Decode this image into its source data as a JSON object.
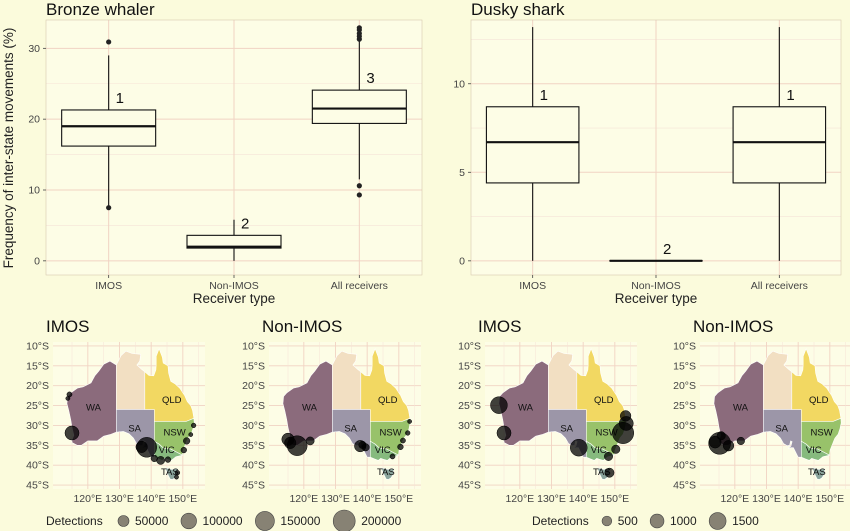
{
  "chart_data": [
    {
      "type": "box",
      "title": "Bronze whaler",
      "xlabel": "Receiver type",
      "ylabel": "Frequency of inter-state movements (%)",
      "ylim": [
        -2,
        34
      ],
      "yticks": [
        0,
        10,
        20,
        30
      ],
      "categories": [
        "IMOS",
        "Non-IMOS",
        "All receivers"
      ],
      "boxes": [
        {
          "category": "IMOS",
          "min": 7.5,
          "q1": 16.2,
          "median": 19.0,
          "q3": 21.3,
          "max": 29.0,
          "outliers": [
            7.5,
            30.9
          ],
          "label": "1"
        },
        {
          "category": "Non-IMOS",
          "min": 0,
          "q1": 1.8,
          "median": 2.0,
          "q3": 3.6,
          "max": 5.8,
          "outliers": [],
          "label": "2"
        },
        {
          "category": "All receivers",
          "min": 11.5,
          "q1": 19.4,
          "median": 21.5,
          "q3": 24.1,
          "max": 31.0,
          "outliers": [
            9.3,
            10.6,
            31.3,
            31.7,
            32.1,
            32.6,
            32.9
          ],
          "label": "3"
        }
      ]
    },
    {
      "type": "box",
      "title": "Dusky shark",
      "xlabel": "Receiver type",
      "ylabel": "",
      "ylim": [
        -0.8,
        13.6
      ],
      "yticks": [
        0,
        5,
        10
      ],
      "categories": [
        "IMOS",
        "Non-IMOS",
        "All receivers"
      ],
      "boxes": [
        {
          "category": "IMOS",
          "min": 0,
          "q1": 4.4,
          "median": 6.7,
          "q3": 8.7,
          "max": 13.2,
          "outliers": [],
          "label": "1"
        },
        {
          "category": "Non-IMOS",
          "min": 0,
          "q1": 0,
          "median": 0,
          "q3": 0,
          "max": 0,
          "outliers": [],
          "label": "2"
        },
        {
          "category": "All receivers",
          "min": 0,
          "q1": 4.4,
          "median": 6.7,
          "q3": 8.7,
          "max": 13.2,
          "outliers": [],
          "label": "1"
        }
      ]
    }
  ],
  "maps": {
    "lat_ticks": [
      "10°S",
      "15°S",
      "20°S",
      "25°S",
      "30°S",
      "35°S",
      "40°S",
      "45°S"
    ],
    "lon_ticks": [
      "120°E",
      "130°E",
      "140°E",
      "150°E"
    ],
    "states": [
      "WA",
      "SA",
      "QLD",
      "NSW",
      "VIC",
      "TAS"
    ],
    "state_colors": {
      "WA": "#8b6b7c",
      "SA": "#9c96a8",
      "NT": "#f2dfc2",
      "QLD": "#f2d862",
      "NSW": "#98c26a",
      "VIC": "#86ba7e",
      "TAS": "#8aa49c"
    },
    "panels": [
      {
        "title": "IMOS",
        "species": "Bronze whaler",
        "points": [
          [
            114.2,
            -22.2,
            12000
          ],
          [
            113.7,
            -23.2,
            8000
          ],
          [
            115.0,
            -31.9,
            90000
          ],
          [
            137.0,
            -35.4,
            60000
          ],
          [
            138.6,
            -35.5,
            180000
          ],
          [
            141.0,
            -38.3,
            20000
          ],
          [
            143.0,
            -38.8,
            30000
          ],
          [
            145.3,
            -38.6,
            15000
          ],
          [
            150.3,
            -36.2,
            15000
          ],
          [
            151.2,
            -33.9,
            20000
          ],
          [
            152.5,
            -32.3,
            8000
          ],
          [
            153.4,
            -30.0,
            10000
          ],
          [
            148.3,
            -41.9,
            10000
          ],
          [
            148.0,
            -43.0,
            8000
          ]
        ]
      },
      {
        "title": "Non-IMOS",
        "species": "Bronze whaler",
        "points": [
          [
            115.0,
            -33.5,
            70000
          ],
          [
            115.7,
            -34.4,
            60000
          ],
          [
            117.9,
            -35.1,
            180000
          ],
          [
            122.0,
            -33.9,
            30000
          ],
          [
            137.8,
            -35.2,
            60000
          ],
          [
            138.5,
            -34.9,
            25000
          ],
          [
            139.5,
            -35.5,
            25000
          ],
          [
            150.5,
            -35.4,
            15000
          ],
          [
            151.3,
            -33.8,
            12000
          ],
          [
            152.8,
            -31.9,
            10000
          ],
          [
            153.4,
            -29.0,
            8000
          ],
          [
            148.0,
            -37.8,
            12000
          ]
        ]
      },
      {
        "title": "IMOS",
        "species": "Dusky shark",
        "points": [
          [
            113.4,
            -24.9,
            1000
          ],
          [
            115.0,
            -31.9,
            700
          ],
          [
            138.6,
            -35.6,
            1000
          ],
          [
            153.4,
            -27.6,
            400
          ],
          [
            153.6,
            -29.5,
            700
          ],
          [
            152.6,
            -31.9,
            1600
          ],
          [
            150.3,
            -36.0,
            250
          ],
          [
            148.0,
            -37.8,
            250
          ],
          [
            148.3,
            -41.9,
            300
          ]
        ]
      },
      {
        "title": "Non-IMOS",
        "species": "Dusky shark",
        "points": [
          [
            115.2,
            -34.5,
            1700
          ],
          [
            113.8,
            -34.2,
            500
          ],
          [
            118.0,
            -35.1,
            400
          ],
          [
            121.9,
            -33.9,
            200
          ],
          [
            115.7,
            -32.6,
            250
          ]
        ]
      }
    ],
    "legends": [
      {
        "title": "Detections",
        "labels": [
          "50000",
          "100000",
          "150000",
          "200000"
        ],
        "values": [
          50000,
          100000,
          150000,
          200000
        ],
        "max": 200000
      },
      {
        "title": "Detections",
        "labels": [
          "500",
          "1000",
          "1500"
        ],
        "values": [
          500,
          1000,
          1500
        ],
        "max": 1700
      }
    ]
  }
}
